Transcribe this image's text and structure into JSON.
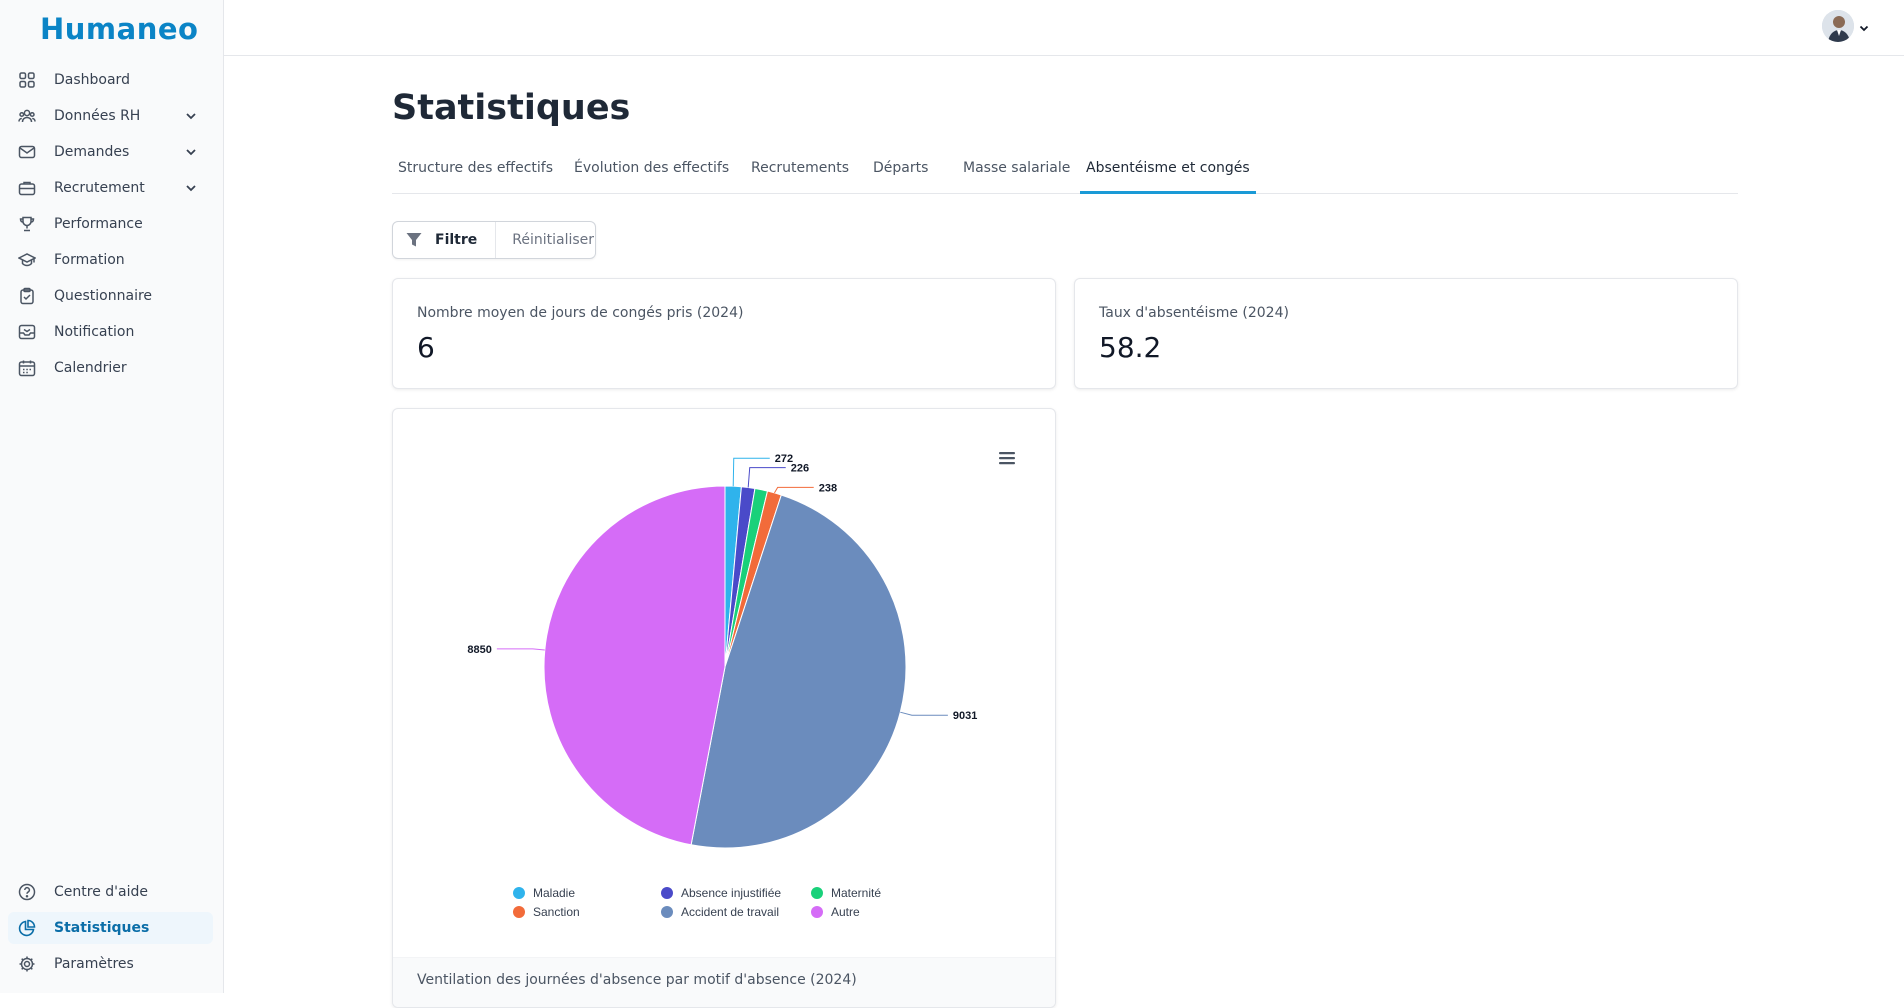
{
  "app": {
    "brand": "Humaneo"
  },
  "sidebar": {
    "items": [
      {
        "label": "Dashboard",
        "icon": "grid-icon"
      },
      {
        "label": "Données RH",
        "icon": "users-icon",
        "expandable": true
      },
      {
        "label": "Demandes",
        "icon": "mail-icon",
        "expandable": true
      },
      {
        "label": "Recrutement",
        "icon": "briefcase-icon",
        "expandable": true
      },
      {
        "label": "Performance",
        "icon": "trophy-icon"
      },
      {
        "label": "Formation",
        "icon": "graduation-cap-icon"
      },
      {
        "label": "Questionnaire",
        "icon": "clipboard-icon"
      },
      {
        "label": "Notification",
        "icon": "inbox-icon"
      },
      {
        "label": "Calendrier",
        "icon": "calendar-icon"
      }
    ],
    "bottom_items": [
      {
        "label": "Centre d'aide",
        "icon": "help-circle-icon"
      },
      {
        "label": "Statistiques",
        "icon": "pie-chart-icon",
        "active": true
      },
      {
        "label": "Paramètres",
        "icon": "gear-icon"
      }
    ]
  },
  "page": {
    "title": "Statistiques"
  },
  "tabs": [
    {
      "label": "Structure des effectifs"
    },
    {
      "label": "Évolution des effectifs"
    },
    {
      "label": "Recrutements"
    },
    {
      "label": "Départs"
    },
    {
      "label": "Masse salariale"
    },
    {
      "label": "Absentéisme et congés",
      "active": true
    }
  ],
  "filters": {
    "filter_label": "Filtre",
    "reset_label": "Réinitialiser"
  },
  "kpis": {
    "leave": {
      "label": "Nombre moyen de jours de congés pris (2024)",
      "value": "6"
    },
    "absenteeism": {
      "label": "Taux d'absentéisme (2024)",
      "value": "58.2"
    }
  },
  "chart_data": {
    "type": "pie",
    "title": "",
    "caption": "Ventilation des journées d'absence par motif d'absence (2024)",
    "labels": [
      "Maladie",
      "Absence injustifiée",
      "Maternité",
      "Sanction",
      "Accident de travail",
      "Autre"
    ],
    "values": [
      272,
      226,
      212,
      238,
      9031,
      8850
    ],
    "shown_labels": [
      "272",
      "226",
      "",
      "238",
      "9031",
      "8850"
    ],
    "colors": [
      "#2fb3ec",
      "#4a4ac9",
      "#19d17a",
      "#f26b3a",
      "#6b8cbd",
      "#d56cf7"
    ],
    "legend_placement": "bottom"
  }
}
